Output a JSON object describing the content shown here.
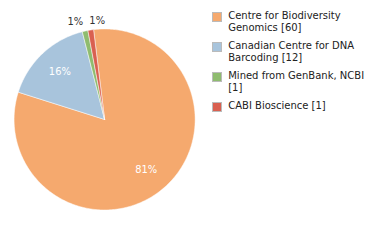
{
  "chart_data": {
    "type": "pie",
    "categories": [
      "Centre for Biodiversity\nGenomics [60]",
      "Canadian Centre for DNA\nBarcoding [12]",
      "Mined from GenBank, NCBI [1]",
      "CABI Bioscience [1]"
    ],
    "values": [
      81,
      16,
      1,
      1
    ],
    "value_labels": [
      "81%",
      "16%",
      "1%",
      "1%"
    ],
    "colors": [
      "#F5A96E",
      "#A8C4DC",
      "#8FBC6F",
      "#D96050"
    ],
    "data_labels": true,
    "legend": "right"
  }
}
